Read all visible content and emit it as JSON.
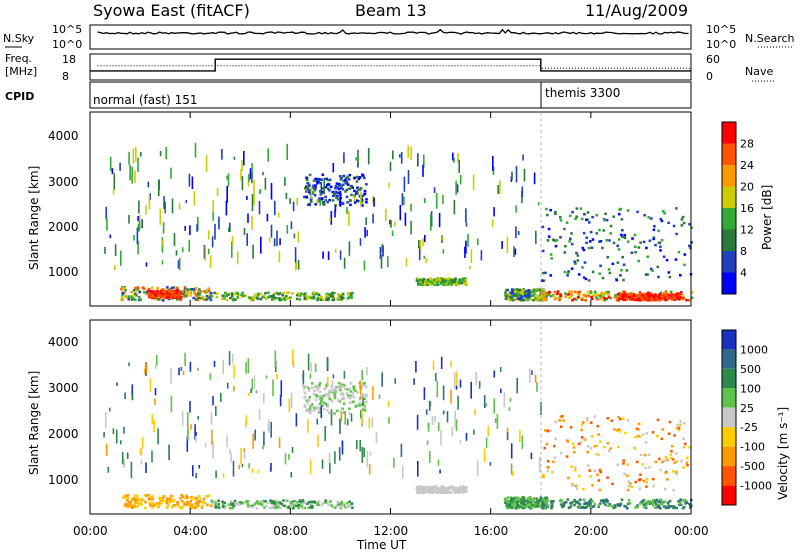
{
  "header": {
    "title": "Syowa East (fitACF)",
    "beam": "Beam 13",
    "date": "11/Aug/2009"
  },
  "noise_panel": {
    "left_label": "N.Sky",
    "left_ticks": [
      "10^5",
      "10^0"
    ],
    "right_label": "N.Search",
    "right_ticks": [
      "10^5",
      "10^0"
    ]
  },
  "freq_panel": {
    "left_label_line1": "Freq.",
    "left_label_line2": "[MHz]",
    "left_ticks": [
      "18",
      "8"
    ],
    "right_label": "Nave",
    "right_ticks": [
      "60",
      "0"
    ],
    "freq_steps": [
      {
        "start_h": 0.0,
        "end_h": 5.0,
        "level": 0.35
      },
      {
        "start_h": 5.0,
        "end_h": 18.0,
        "level": 0.8
      },
      {
        "start_h": 18.0,
        "end_h": 24.0,
        "level": 0.35
      }
    ]
  },
  "cpid_panel": {
    "label": "CPID",
    "modes": [
      {
        "name": "normal (fast) 151",
        "start_h": 0.0
      },
      {
        "name": "themis 3300",
        "start_h": 18.0
      }
    ]
  },
  "power_panel": {
    "ylabel": "Slant Range [km]",
    "yticks": [
      "4000",
      "3000",
      "2000",
      "1000"
    ],
    "colorbar_label": "Power [dB]",
    "colorbar_ticks": [
      "28",
      "24",
      "20",
      "16",
      "12",
      "8",
      "4"
    ],
    "colors": [
      "#0000ff",
      "#2040c0",
      "#2a7a3a",
      "#33aa33",
      "#cccc00",
      "#ff9900",
      "#ff5500",
      "#ff0000"
    ]
  },
  "velocity_panel": {
    "ylabel": "Slant Range [km]",
    "yticks": [
      "4000",
      "3000",
      "2000",
      "1000"
    ],
    "colorbar_label": "Velocity [m s⁻¹]",
    "colorbar_ticks": [
      "1000",
      "500",
      "100",
      "25",
      "-25",
      "-100",
      "-500",
      "-1000"
    ],
    "colors": [
      "#1a30c0",
      "#2f6a8a",
      "#2e8a4a",
      "#5fc24a",
      "#c8c8c8",
      "#ffcc00",
      "#ff9900",
      "#ff5500",
      "#ff0000"
    ]
  },
  "xaxis": {
    "label": "Time UT",
    "ticks": [
      "00:00",
      "04:00",
      "08:00",
      "12:00",
      "16:00",
      "20:00",
      "00:00"
    ]
  },
  "chart_data": {
    "type": "heatmap",
    "title": "Syowa East (fitACF)",
    "xlabel": "Time UT",
    "ylabel": "Slant Range [km]",
    "xlim": [
      0,
      24
    ],
    "ylim": [
      200,
      4600
    ],
    "power_blobs": [
      {
        "t0": 1.2,
        "t1": 4.8,
        "r0": 300,
        "r1": 600,
        "c": [
          1,
          6
        ]
      },
      {
        "t0": 2.3,
        "t1": 3.6,
        "r0": 350,
        "r1": 520,
        "c": [
          6,
          7
        ]
      },
      {
        "t0": 4.8,
        "t1": 10.5,
        "r0": 300,
        "r1": 480,
        "c": [
          2,
          4
        ]
      },
      {
        "t0": 8.5,
        "t1": 11.0,
        "r0": 2450,
        "r1": 3150,
        "c": [
          0,
          2
        ]
      },
      {
        "t0": 13.0,
        "t1": 15.0,
        "r0": 650,
        "r1": 800,
        "c": [
          2,
          4
        ]
      },
      {
        "t0": 16.5,
        "t1": 18.2,
        "r0": 300,
        "r1": 550,
        "c": [
          1,
          4
        ]
      },
      {
        "t0": 18.0,
        "t1": 24.0,
        "r0": 300,
        "r1": 500,
        "c": [
          3,
          7
        ]
      },
      {
        "t0": 21.0,
        "t1": 23.5,
        "r0": 300,
        "r1": 450,
        "c": [
          6,
          7
        ]
      },
      {
        "t0": 18.0,
        "t1": 24.0,
        "r0": 700,
        "r1": 2400,
        "c": [
          0,
          3
        ]
      },
      {
        "t0": 0.5,
        "t1": 18.0,
        "r0": 1000,
        "r1": 3600,
        "c": [
          0,
          4
        ]
      }
    ],
    "velocity_blobs": [
      {
        "t0": 1.2,
        "t1": 4.8,
        "r0": 300,
        "r1": 600,
        "c": [
          5,
          6
        ]
      },
      {
        "t0": 4.8,
        "t1": 10.5,
        "r0": 300,
        "r1": 480,
        "c": [
          2,
          4
        ]
      },
      {
        "t0": 8.5,
        "t1": 11.0,
        "r0": 2450,
        "r1": 3150,
        "c": [
          3,
          4
        ]
      },
      {
        "t0": 13.0,
        "t1": 15.0,
        "r0": 650,
        "r1": 800,
        "c": [
          4,
          4
        ]
      },
      {
        "t0": 16.5,
        "t1": 18.2,
        "r0": 300,
        "r1": 550,
        "c": [
          2,
          3
        ]
      },
      {
        "t0": 18.0,
        "t1": 24.0,
        "r0": 300,
        "r1": 500,
        "c": [
          1,
          3
        ]
      },
      {
        "t0": 18.0,
        "t1": 24.0,
        "r0": 700,
        "r1": 2400,
        "c": [
          4,
          7
        ]
      },
      {
        "t0": 0.5,
        "t1": 18.0,
        "r0": 1000,
        "r1": 3600,
        "c": [
          0,
          6
        ]
      }
    ]
  }
}
